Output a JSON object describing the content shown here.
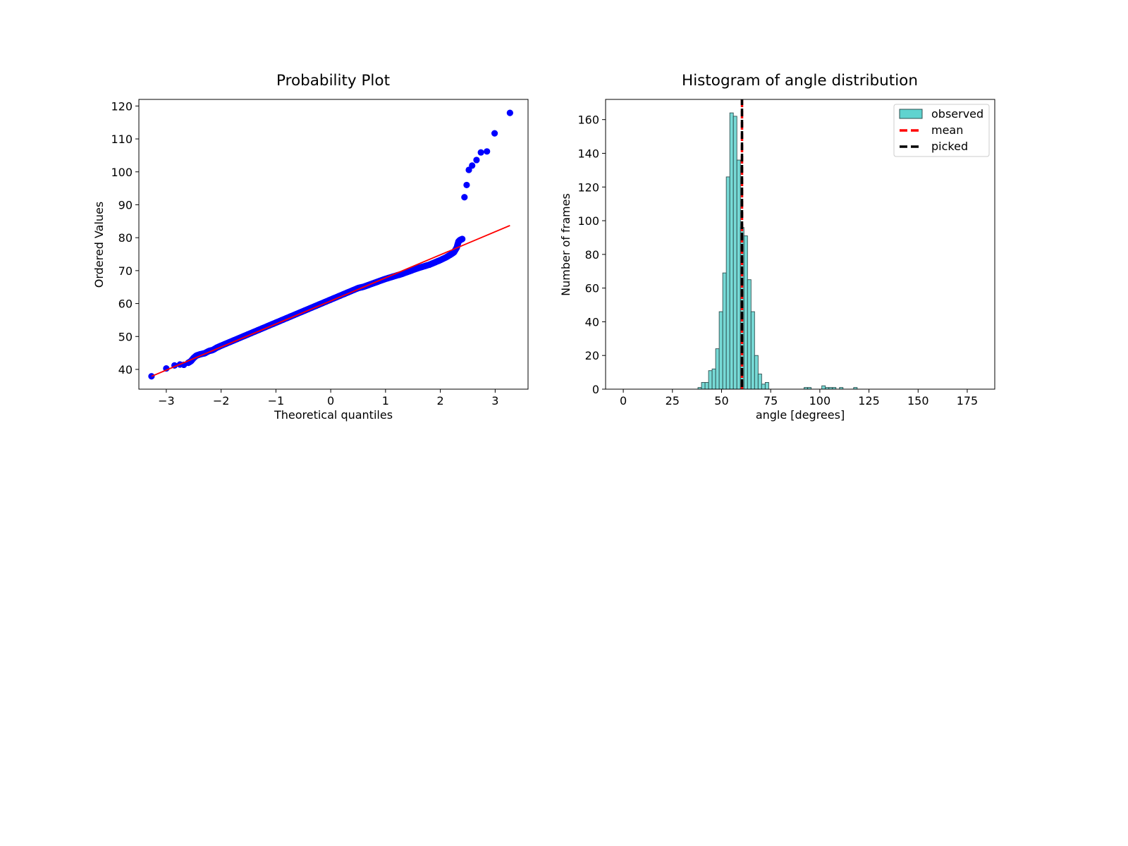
{
  "chart_data": [
    {
      "type": "scatter",
      "title": "Probability Plot",
      "xlabel": "Theoretical quantiles",
      "ylabel": "Ordered Values",
      "xlim": [
        -3.5,
        3.6
      ],
      "ylim": [
        34,
        122
      ],
      "xticks": [
        -3,
        -2,
        -1,
        0,
        1,
        2,
        3
      ],
      "xtick_labels": [
        "−3",
        "−2",
        "−1",
        "0",
        "1",
        "2",
        "3"
      ],
      "yticks": [
        40,
        50,
        60,
        70,
        80,
        90,
        100,
        110,
        120
      ],
      "ytick_labels": [
        "40",
        "50",
        "60",
        "70",
        "80",
        "90",
        "100",
        "110",
        "120"
      ],
      "grid": false,
      "series": [
        {
          "kind": "points",
          "color": "#0000ff",
          "points": [
            [
              -3.27,
              37.9
            ],
            [
              -3.0,
              40.3
            ],
            [
              -2.85,
              41.2
            ],
            [
              -2.75,
              41.5
            ],
            [
              -2.68,
              41.4
            ],
            [
              -2.6,
              42.0
            ],
            [
              -2.55,
              42.5
            ],
            [
              -2.5,
              43.5
            ],
            [
              -2.45,
              44.2
            ],
            [
              -2.38,
              44.6
            ],
            [
              -2.3,
              44.9
            ],
            [
              -2.22,
              45.6
            ],
            [
              -2.15,
              45.9
            ],
            [
              -2.08,
              46.6
            ],
            [
              -2.0,
              47.2
            ],
            [
              -1.9,
              47.9
            ],
            [
              -1.8,
              48.6
            ],
            [
              -1.7,
              49.3
            ],
            [
              -1.6,
              50.0
            ],
            [
              -1.5,
              50.7
            ],
            [
              -1.4,
              51.4
            ],
            [
              -1.3,
              52.1
            ],
            [
              -1.2,
              52.8
            ],
            [
              -1.1,
              53.5
            ],
            [
              -1.0,
              54.2
            ],
            [
              -0.9,
              54.9
            ],
            [
              -0.8,
              55.6
            ],
            [
              -0.7,
              56.3
            ],
            [
              -0.6,
              57.0
            ],
            [
              -0.5,
              57.7
            ],
            [
              -0.4,
              58.4
            ],
            [
              -0.3,
              59.1
            ],
            [
              -0.2,
              59.8
            ],
            [
              -0.1,
              60.5
            ],
            [
              0.0,
              61.2
            ],
            [
              0.1,
              61.9
            ],
            [
              0.2,
              62.6
            ],
            [
              0.3,
              63.3
            ],
            [
              0.4,
              64.0
            ],
            [
              0.5,
              64.7
            ],
            [
              0.6,
              65.1
            ],
            [
              0.7,
              65.7
            ],
            [
              0.8,
              66.3
            ],
            [
              0.9,
              66.9
            ],
            [
              1.0,
              67.5
            ],
            [
              1.1,
              68.0
            ],
            [
              1.2,
              68.5
            ],
            [
              1.3,
              69.0
            ],
            [
              1.4,
              69.6
            ],
            [
              1.5,
              70.2
            ],
            [
              1.6,
              70.8
            ],
            [
              1.7,
              71.3
            ],
            [
              1.8,
              71.8
            ],
            [
              1.9,
              72.5
            ],
            [
              2.0,
              73.2
            ],
            [
              2.1,
              74.0
            ],
            [
              2.2,
              75.0
            ],
            [
              2.25,
              75.6
            ],
            [
              2.3,
              77.0
            ],
            [
              2.33,
              78.8
            ],
            [
              2.36,
              79.3
            ],
            [
              2.4,
              79.6
            ],
            [
              2.44,
              92.3
            ],
            [
              2.48,
              96.0
            ],
            [
              2.52,
              100.6
            ],
            [
              2.58,
              101.9
            ],
            [
              2.66,
              103.6
            ],
            [
              2.74,
              105.9
            ],
            [
              2.85,
              106.2
            ],
            [
              2.99,
              111.7
            ],
            [
              3.27,
              117.9
            ]
          ]
        },
        {
          "kind": "fit-line",
          "color": "#ff0000",
          "x": [
            -3.27,
            3.27
          ],
          "y": [
            37.9,
            83.7
          ]
        }
      ]
    },
    {
      "type": "bar",
      "title": "Histogram of angle distribution",
      "xlabel": "angle [degrees]",
      "ylabel": "Number of frames",
      "xlim": [
        -9,
        189
      ],
      "ylim": [
        0,
        172
      ],
      "xticks": [
        0,
        25,
        50,
        75,
        100,
        125,
        150,
        175
      ],
      "xtick_labels": [
        "0",
        "25",
        "50",
        "75",
        "100",
        "125",
        "150",
        "175"
      ],
      "yticks": [
        0,
        20,
        40,
        60,
        80,
        100,
        120,
        140,
        160
      ],
      "ytick_labels": [
        "0",
        "20",
        "40",
        "60",
        "80",
        "100",
        "120",
        "140",
        "160"
      ],
      "grid": false,
      "bin_width": 1.8,
      "bin_start": 38,
      "bar_color": "#5fd3cf",
      "bar_edge_color": "#2f4f4f",
      "counts": [
        1,
        4,
        4,
        11,
        12,
        24,
        46,
        69,
        126,
        164,
        162,
        136,
        96,
        91,
        65,
        46,
        20,
        9,
        3,
        4,
        0,
        0,
        0,
        0,
        0,
        0,
        0,
        0,
        0,
        0,
        1,
        1,
        0,
        0,
        0,
        2,
        1,
        1,
        1,
        0,
        1,
        0,
        0,
        0,
        1
      ],
      "vlines": [
        {
          "name": "mean",
          "x": 60.4,
          "color": "#ff0000"
        },
        {
          "name": "picked",
          "x": 60.4,
          "color": "#000000"
        }
      ],
      "legend": {
        "placement": "top-right",
        "entries": [
          {
            "label": "observed",
            "kind": "patch",
            "color": "#5fd3cf"
          },
          {
            "label": "mean",
            "kind": "dashed-line",
            "color": "#ff0000"
          },
          {
            "label": "picked",
            "kind": "dashed-line",
            "color": "#000000"
          }
        ]
      }
    }
  ]
}
